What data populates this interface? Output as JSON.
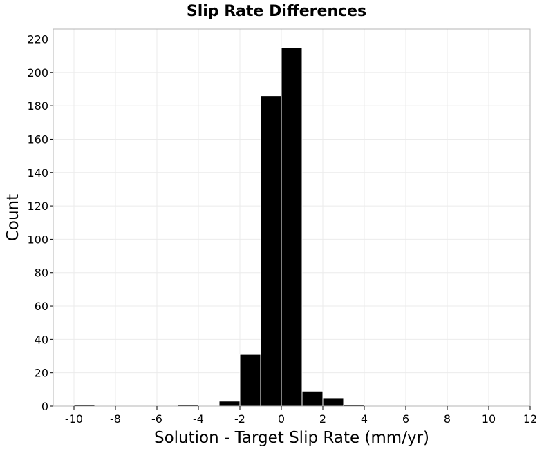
{
  "chart_data": {
    "type": "bar",
    "title": "Slip Rate Differences",
    "xlabel": "Solution - Target Slip Rate (mm/yr)",
    "ylabel": "Count",
    "xlim": [
      -11,
      12
    ],
    "ylim": [
      0,
      226
    ],
    "x_ticks": [
      -10,
      -8,
      -6,
      -4,
      -2,
      0,
      2,
      4,
      6,
      8,
      10,
      12
    ],
    "y_ticks": [
      0,
      20,
      40,
      60,
      80,
      100,
      120,
      140,
      160,
      180,
      200,
      220
    ],
    "bin_width": 1,
    "bins": [
      {
        "center": -9.5,
        "count": 1
      },
      {
        "center": -4.5,
        "count": 1
      },
      {
        "center": -2.5,
        "count": 3
      },
      {
        "center": -1.5,
        "count": 31
      },
      {
        "center": -0.5,
        "count": 186
      },
      {
        "center": 0.5,
        "count": 215
      },
      {
        "center": 1.5,
        "count": 9
      },
      {
        "center": 2.5,
        "count": 5
      },
      {
        "center": 3.5,
        "count": 1
      }
    ],
    "grid": true,
    "bar_color": "#000000"
  }
}
